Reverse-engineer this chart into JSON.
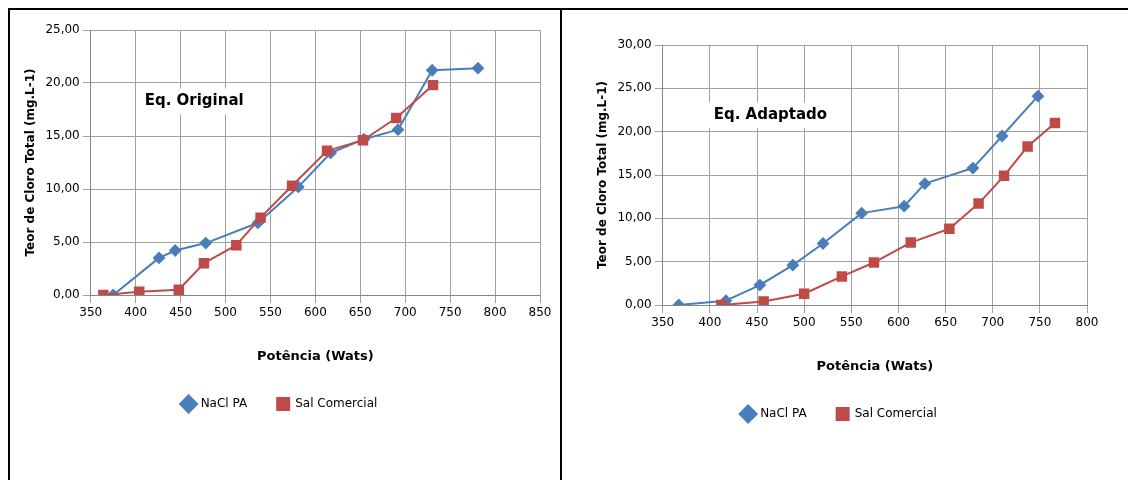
{
  "chart_data": [
    {
      "type": "line",
      "xlabel": "Potência (Wats)",
      "ylabel": "Teor de Cloro Total (mg.L-1)",
      "annotations": [
        "Eq. Original"
      ],
      "xlim": [
        350,
        850
      ],
      "xticks": [
        350,
        400,
        450,
        500,
        550,
        600,
        650,
        700,
        750,
        800,
        850
      ],
      "ylim": [
        0,
        25
      ],
      "yticks": [
        {
          "value": 0,
          "label": "0,00"
        },
        {
          "value": 5,
          "label": "5,00"
        },
        {
          "value": 10,
          "label": "10,00"
        },
        {
          "value": 15,
          "label": "15,00"
        },
        {
          "value": 20,
          "label": "20,00"
        },
        {
          "value": 25,
          "label": "25,00"
        }
      ],
      "grid": true,
      "legend": "bottom",
      "line_style": "solid",
      "series": [
        {
          "name": "NaCl PA",
          "color": "#4a7ebb",
          "marker": "diamond",
          "x": [
            375,
            426,
            444,
            478,
            536,
            581,
            617,
            654,
            692,
            730,
            781
          ],
          "values": [
            0,
            3.5,
            4.2,
            4.9,
            6.8,
            10.2,
            13.4,
            14.7,
            15.6,
            21.2,
            21.4
          ]
        },
        {
          "name": "Sal Comercial",
          "color": "#be4b48",
          "marker": "square",
          "x": [
            364,
            404,
            448,
            476,
            512,
            539,
            574,
            613,
            653,
            690,
            731
          ],
          "values": [
            0,
            0.3,
            0.5,
            3.0,
            4.7,
            7.3,
            10.3,
            13.6,
            14.6,
            16.7,
            19.8
          ]
        }
      ]
    },
    {
      "type": "line",
      "xlabel": "Potência (Wats)",
      "ylabel": "Teor de Cloro Total (mg.L-1)",
      "annotations": [
        "Eq. Adaptado"
      ],
      "xlim": [
        350,
        800
      ],
      "xticks": [
        350,
        400,
        450,
        500,
        550,
        600,
        650,
        700,
        750,
        800
      ],
      "ylim": [
        0,
        30
      ],
      "yticks": [
        {
          "value": 0,
          "label": "0,00"
        },
        {
          "value": 5,
          "label": "5,00"
        },
        {
          "value": 10,
          "label": "10,00"
        },
        {
          "value": 15,
          "label": "15,00"
        },
        {
          "value": 20,
          "label": "20,00"
        },
        {
          "value": 25,
          "label": "25,00"
        },
        {
          "value": 30,
          "label": "30,00"
        }
      ],
      "grid": true,
      "legend": "bottom",
      "line_style": "solid",
      "series": [
        {
          "name": "NaCl PA",
          "color": "#4a7ebb",
          "marker": "diamond",
          "x": [
            367,
            417,
            453,
            488,
            520,
            561,
            606,
            628,
            679,
            710,
            748
          ],
          "values": [
            0,
            0.5,
            2.3,
            4.6,
            7.1,
            10.6,
            11.4,
            14.0,
            15.8,
            19.5,
            24.1
          ]
        },
        {
          "name": "Sal Comercial",
          "color": "#be4b48",
          "marker": "square",
          "x": [
            412,
            457,
            500,
            540,
            574,
            613,
            654,
            685,
            712,
            737,
            766
          ],
          "values": [
            0,
            0.4,
            1.3,
            3.3,
            4.9,
            7.2,
            8.8,
            11.7,
            14.9,
            18.3,
            21.0
          ]
        }
      ]
    }
  ]
}
